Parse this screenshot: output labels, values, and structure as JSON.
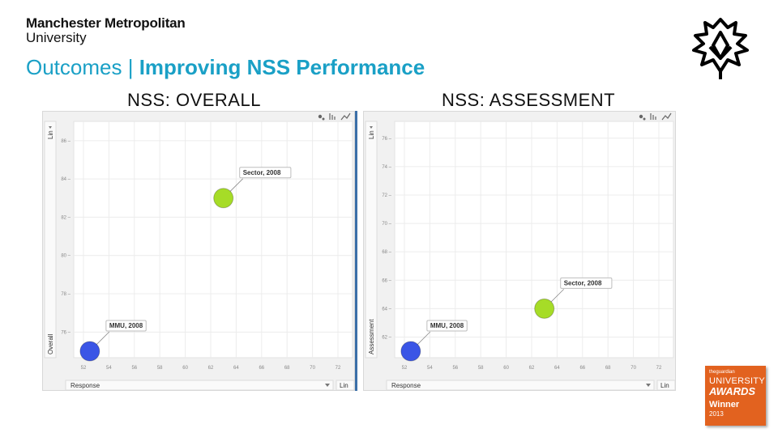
{
  "brand": {
    "line1": "Manchester Metropolitan",
    "line2": "University"
  },
  "title": {
    "prefix": "Outcomes | ",
    "main": "Improving NSS Performance"
  },
  "colors": {
    "title": "#1aa0c6",
    "green": "#a6dc27",
    "blue": "#3a55e6",
    "award": "#e2621f"
  },
  "charts": [
    {
      "subtitle": "NSS: OVERALL",
      "y_axis_label": "Overall",
      "y_scale_toggle": "Lin",
      "x_axis_label": "Response",
      "x_scale_toggle": "Lin",
      "chart_data": {
        "type": "scatter",
        "x_ticks": [
          "52",
          "54",
          "56",
          "58",
          "60",
          "62",
          "64",
          "66",
          "68",
          "70",
          "72"
        ],
        "y_ticks": [
          "76",
          "78",
          "80",
          "82",
          "84",
          "86"
        ],
        "xlim": [
          52,
          72
        ],
        "ylim": [
          75,
          86.5
        ],
        "points": [
          {
            "name": "Sector, 2008",
            "x": 63,
            "y": 83,
            "color": "#a6dc27"
          },
          {
            "name": "MMU, 2008",
            "x": 52.5,
            "y": 75,
            "color": "#3a55e6"
          }
        ]
      }
    },
    {
      "subtitle": "NSS: ASSESSMENT",
      "y_axis_label": "Assessment",
      "y_scale_toggle": "Lin",
      "x_axis_label": "Response",
      "x_scale_toggle": "Lin",
      "chart_data": {
        "type": "scatter",
        "x_ticks": [
          "52",
          "54",
          "56",
          "58",
          "60",
          "62",
          "64",
          "66",
          "68",
          "70",
          "72"
        ],
        "y_ticks": [
          "62",
          "64",
          "66",
          "68",
          "70",
          "72",
          "74",
          "76"
        ],
        "xlim": [
          52,
          72
        ],
        "ylim": [
          61,
          76.5
        ],
        "points": [
          {
            "name": "Sector, 2008",
            "x": 63,
            "y": 64,
            "color": "#a6dc27"
          },
          {
            "name": "MMU, 2008",
            "x": 52.5,
            "y": 61,
            "color": "#3a55e6"
          }
        ]
      }
    }
  ],
  "award": {
    "line1": "theguardian",
    "line2": "UNIVERSITY",
    "line3": "AWARDS",
    "line4": "Winner",
    "line5": "2013"
  }
}
